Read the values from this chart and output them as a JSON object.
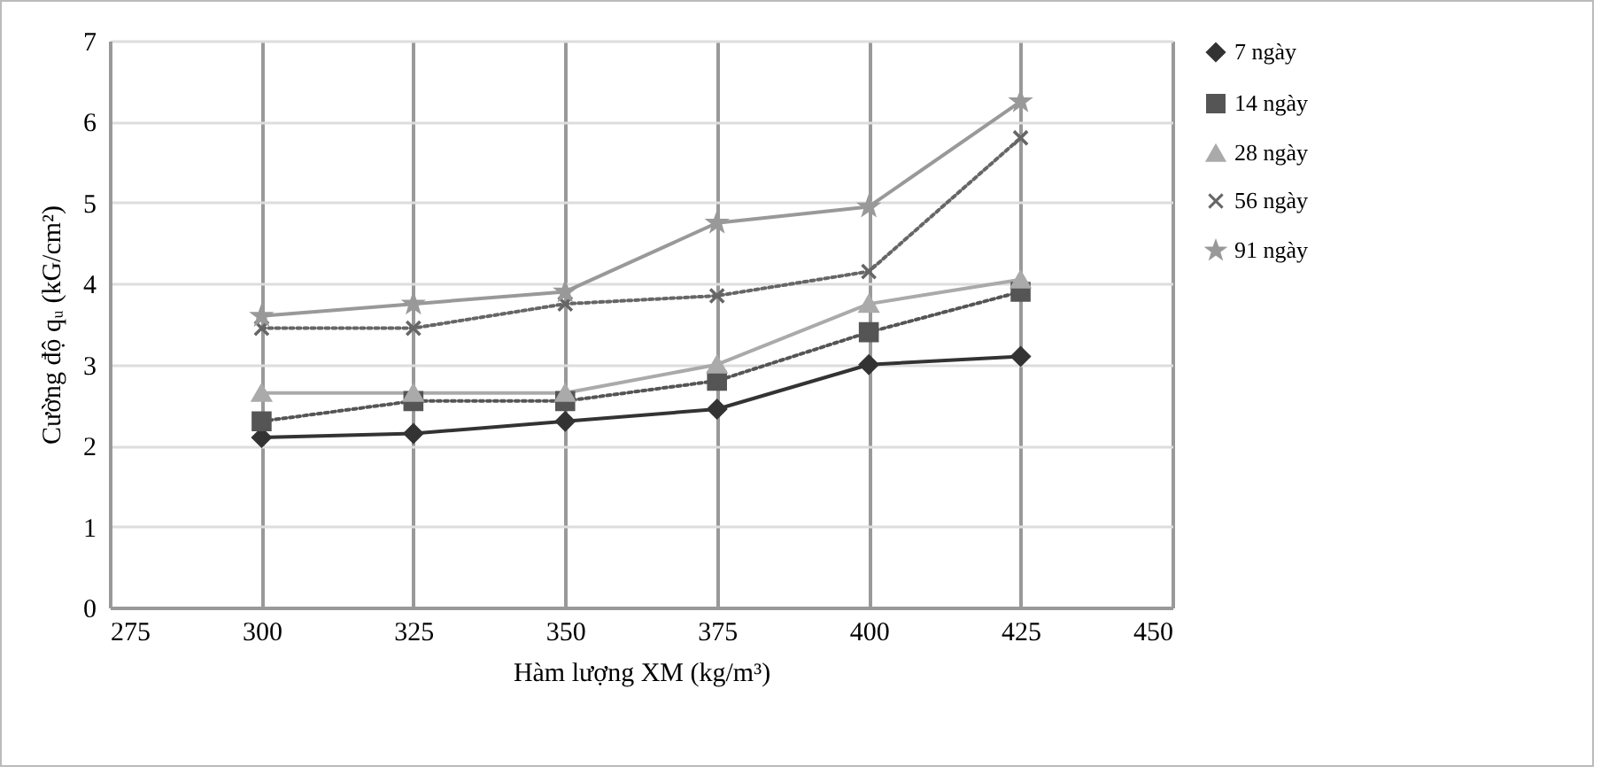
{
  "chart_data": {
    "type": "line",
    "xlabel": "Hàm lượng XM (kg/m³)",
    "ylabel": "Cường độ qᵤ (kG/cm²)",
    "x": [
      300,
      325,
      350,
      375,
      400,
      425
    ],
    "xlim": [
      275,
      450
    ],
    "xticks": [
      275,
      300,
      325,
      350,
      375,
      400,
      425,
      450
    ],
    "ylim": [
      0,
      7
    ],
    "yticks": [
      0,
      1,
      2,
      3,
      4,
      5,
      6,
      7
    ],
    "grid": true,
    "legend": "right",
    "series": [
      {
        "name": "7 ngày",
        "color": "#333333",
        "marker": "diamond",
        "line_style": "solid",
        "values": [
          2.1,
          2.15,
          2.3,
          2.45,
          3.0,
          3.1
        ]
      },
      {
        "name": "14 ngày",
        "color": "#555555",
        "marker": "square",
        "line_style": "dotted",
        "values": [
          2.3,
          2.55,
          2.55,
          2.8,
          3.4,
          3.9
        ]
      },
      {
        "name": "28 ngày",
        "color": "#aaaaaa",
        "marker": "triangle",
        "line_style": "solid",
        "values": [
          2.65,
          2.65,
          2.65,
          3.0,
          3.75,
          4.05
        ]
      },
      {
        "name": "56 ngày",
        "color": "#666666",
        "marker": "cross",
        "line_style": "dotted",
        "values": [
          3.45,
          3.45,
          3.75,
          3.85,
          4.15,
          5.8
        ]
      },
      {
        "name": "91 ngày",
        "color": "#999999",
        "marker": "star",
        "line_style": "solid",
        "values": [
          3.6,
          3.75,
          3.9,
          4.75,
          4.95,
          6.25
        ]
      }
    ]
  }
}
